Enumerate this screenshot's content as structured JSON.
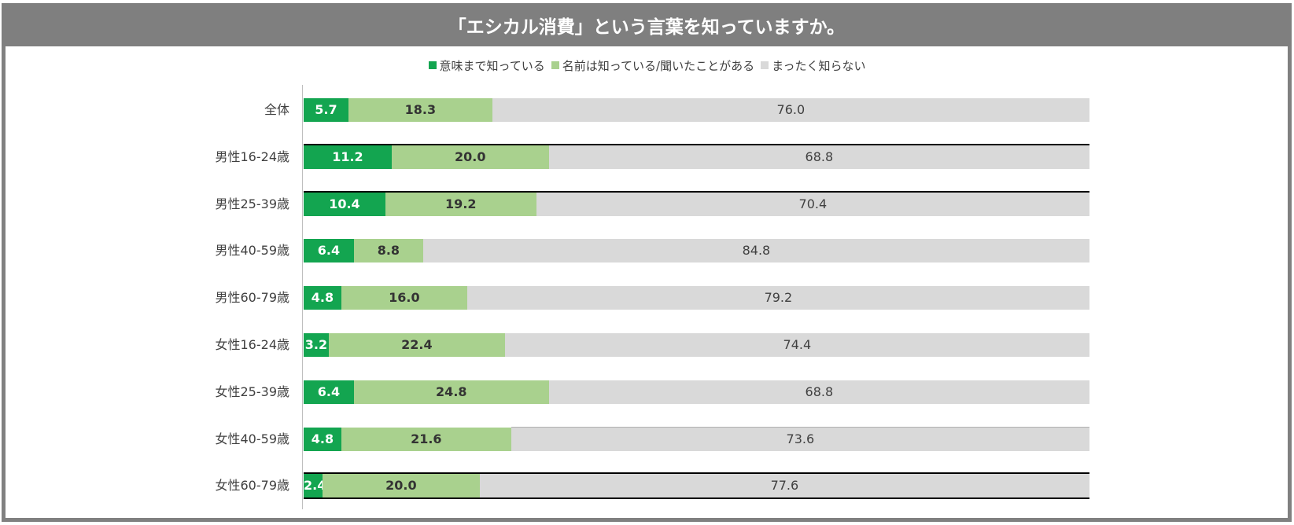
{
  "chart_data": {
    "type": "bar",
    "orientation": "horizontal",
    "stacked": true,
    "title": "「エシカル消費」という言葉を知っていますか。",
    "xlabel": "",
    "ylabel": "",
    "xlim": [
      0,
      100
    ],
    "legend_position": "top",
    "categories": [
      "全体",
      "男性16-24歳",
      "男性25-39歳",
      "男性40-59歳",
      "男性60-79歳",
      "女性16-24歳",
      "女性25-39歳",
      "女性40-59歳",
      "女性60-79歳"
    ],
    "series": [
      {
        "name": "意味まで知っている",
        "color": "#13a550",
        "values": [
          5.7,
          11.2,
          10.4,
          6.4,
          4.8,
          3.2,
          6.4,
          4.8,
          2.4
        ]
      },
      {
        "name": "名前は知っている/聞いたことがある",
        "color": "#a9d18e",
        "values": [
          18.3,
          20.0,
          19.2,
          8.8,
          16.0,
          22.4,
          24.8,
          21.6,
          20.0
        ]
      },
      {
        "name": "まったく知らない",
        "color": "#d9d9d9",
        "values": [
          76.0,
          68.8,
          70.4,
          84.8,
          79.2,
          74.4,
          68.8,
          73.6,
          77.6
        ]
      }
    ],
    "data_labels": [
      [
        "5.7",
        "11.2",
        "10.4",
        "6.4",
        "4.8",
        "3.2",
        "6.4",
        "4.8",
        "2.4"
      ],
      [
        "18.3",
        "20.0",
        "19.2",
        "8.8",
        "16.0",
        "22.4",
        "24.8",
        "21.6",
        "20.0"
      ],
      [
        "76.0",
        "68.8",
        "70.4",
        "84.8",
        "79.2",
        "74.4",
        "68.8",
        "73.6",
        "77.6"
      ]
    ]
  },
  "colors": {
    "header_bg": "#7f7f7f",
    "frame": "#808080"
  }
}
